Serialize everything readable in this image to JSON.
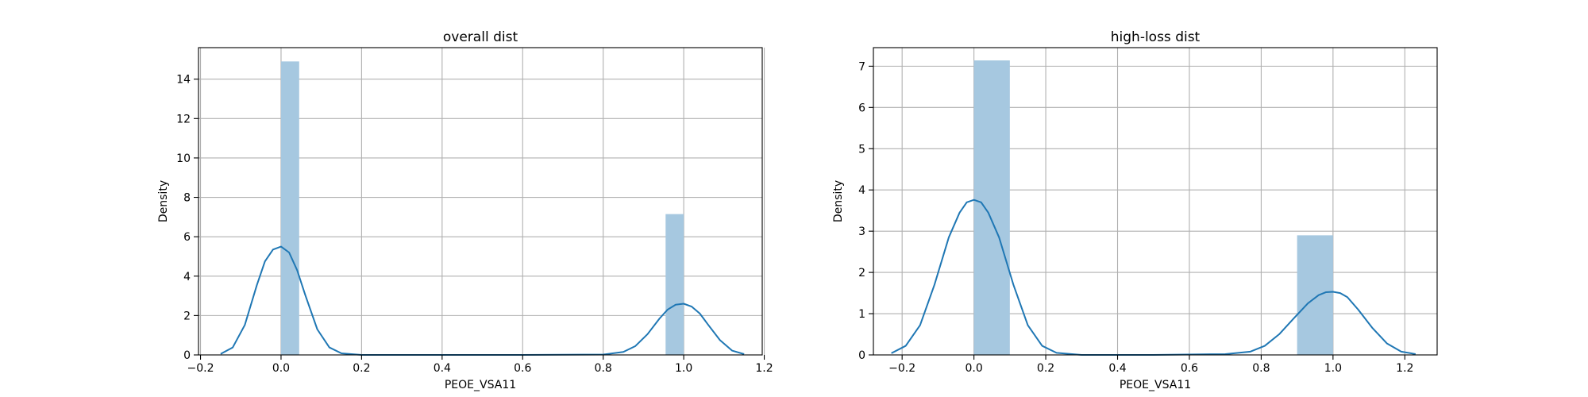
{
  "chart_data": [
    {
      "type": "bar",
      "title": "overall dist",
      "xlabel": "PEOE_VSA11",
      "ylabel": "Density",
      "xlim": [
        -0.205,
        1.195
      ],
      "ylim": [
        0,
        15.6
      ],
      "xticks": [
        -0.2,
        0.0,
        0.2,
        0.4,
        0.6,
        0.8,
        1.0,
        1.2
      ],
      "xtick_labels": [
        "−0.2",
        "0.0",
        "0.2",
        "0.4",
        "0.6",
        "0.8",
        "1.0",
        "1.2"
      ],
      "yticks": [
        0,
        2,
        4,
        6,
        8,
        10,
        12,
        14
      ],
      "ytick_labels": [
        "0",
        "2",
        "4",
        "6",
        "8",
        "10",
        "12",
        "14"
      ],
      "grid": true,
      "bar_color": "#a6c8e0",
      "line_color": "#1f77b4",
      "bars": [
        {
          "x0": 0.0,
          "x1": 0.045,
          "value": 14.9
        },
        {
          "x0": 0.955,
          "x1": 1.0,
          "value": 7.15
        }
      ],
      "kde": {
        "x": [
          -0.15,
          -0.12,
          -0.09,
          -0.06,
          -0.04,
          -0.02,
          0.0,
          0.02,
          0.04,
          0.06,
          0.09,
          0.12,
          0.15,
          0.2,
          0.4,
          0.6,
          0.8,
          0.85,
          0.88,
          0.91,
          0.94,
          0.96,
          0.98,
          1.0,
          1.02,
          1.04,
          1.06,
          1.09,
          1.12,
          1.15
        ],
        "y": [
          0.05,
          0.38,
          1.52,
          3.55,
          4.75,
          5.35,
          5.5,
          5.2,
          4.3,
          3.05,
          1.3,
          0.38,
          0.08,
          0.0,
          0.0,
          0.0,
          0.02,
          0.15,
          0.45,
          1.05,
          1.85,
          2.3,
          2.55,
          2.6,
          2.45,
          2.1,
          1.55,
          0.75,
          0.22,
          0.04
        ]
      }
    },
    {
      "type": "bar",
      "title": "high-loss dist",
      "xlabel": "PEOE_VSA11",
      "ylabel": "Density",
      "xlim": [
        -0.28,
        1.29
      ],
      "ylim": [
        0,
        7.45
      ],
      "xticks": [
        -0.2,
        0.0,
        0.2,
        0.4,
        0.6,
        0.8,
        1.0,
        1.2
      ],
      "xtick_labels": [
        "−0.2",
        "0.0",
        "0.2",
        "0.4",
        "0.6",
        "0.8",
        "1.0",
        "1.2"
      ],
      "yticks": [
        0,
        1,
        2,
        3,
        4,
        5,
        6,
        7
      ],
      "ytick_labels": [
        "0",
        "1",
        "2",
        "3",
        "4",
        "5",
        "6",
        "7"
      ],
      "grid": true,
      "bar_color": "#a6c8e0",
      "line_color": "#1f77b4",
      "bars": [
        {
          "x0": 0.0,
          "x1": 0.1,
          "value": 7.14
        },
        {
          "x0": 0.9,
          "x1": 1.0,
          "value": 2.9
        }
      ],
      "kde": {
        "x": [
          -0.23,
          -0.19,
          -0.15,
          -0.11,
          -0.07,
          -0.04,
          -0.02,
          0.0,
          0.02,
          0.04,
          0.07,
          0.11,
          0.15,
          0.19,
          0.23,
          0.3,
          0.5,
          0.7,
          0.77,
          0.81,
          0.85,
          0.89,
          0.93,
          0.96,
          0.98,
          1.0,
          1.02,
          1.04,
          1.07,
          1.11,
          1.15,
          1.19,
          1.23
        ],
        "y": [
          0.04,
          0.22,
          0.72,
          1.7,
          2.85,
          3.45,
          3.7,
          3.76,
          3.7,
          3.45,
          2.85,
          1.7,
          0.72,
          0.22,
          0.05,
          0.0,
          0.0,
          0.02,
          0.08,
          0.22,
          0.5,
          0.88,
          1.25,
          1.45,
          1.52,
          1.53,
          1.5,
          1.4,
          1.1,
          0.65,
          0.28,
          0.08,
          0.02
        ]
      }
    }
  ]
}
